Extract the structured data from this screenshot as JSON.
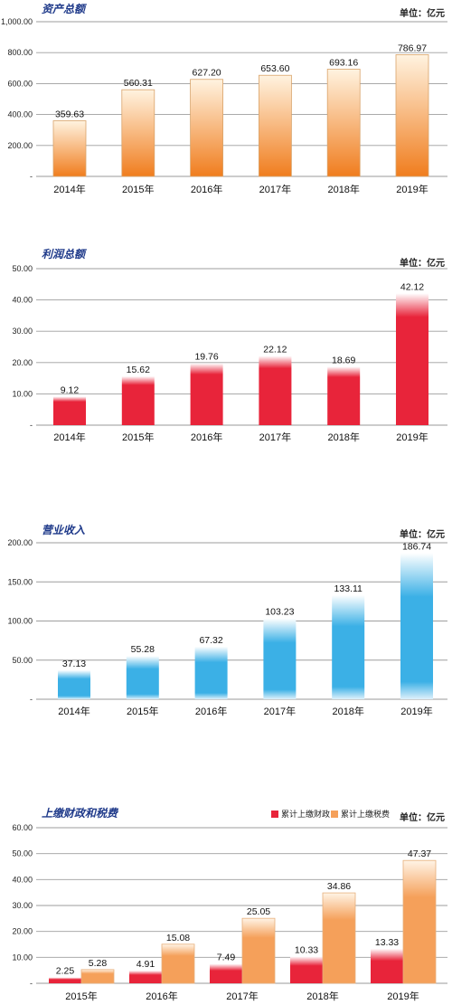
{
  "chart_data": [
    {
      "type": "bar",
      "title": "资产总额",
      "unit": "单位：亿元",
      "categories": [
        "2014年",
        "2015年",
        "2016年",
        "2017年",
        "2018年",
        "2019年"
      ],
      "values": [
        359.63,
        560.31,
        627.2,
        653.6,
        693.16,
        786.97
      ],
      "labels": [
        "359.63",
        "560.31",
        "627.20",
        "653.60",
        "693.16",
        "786.97"
      ],
      "ylim": [
        0,
        1000
      ],
      "yticks": [
        "-",
        "200.00",
        "400.00",
        "600.00",
        "800.00",
        "1,000.00"
      ],
      "grid": true,
      "colors": {
        "top": "#fff3e0",
        "bottom": "#f07d1e",
        "edge": "#d9a46b"
      }
    },
    {
      "type": "bar",
      "title": "利润总额",
      "unit": "单位：亿元",
      "categories": [
        "2014年",
        "2015年",
        "2016年",
        "2017年",
        "2018年",
        "2019年"
      ],
      "values": [
        9.12,
        15.62,
        19.76,
        22.12,
        18.69,
        42.12
      ],
      "labels": [
        "9.12",
        "15.62",
        "19.76",
        "22.12",
        "18.69",
        "42.12"
      ],
      "ylim": [
        0,
        50
      ],
      "yticks": [
        "-",
        "10.00",
        "20.00",
        "30.00",
        "40.00",
        "50.00"
      ],
      "grid": true,
      "colors": {
        "top": "#ffffff",
        "bottom": "#e8243a",
        "edge": "#e8243a"
      }
    },
    {
      "type": "bar",
      "title": "营业收入",
      "unit": "单位：亿元",
      "categories": [
        "2014年",
        "2015年",
        "2016年",
        "2017年",
        "2018年",
        "2019年"
      ],
      "values": [
        37.13,
        55.28,
        67.32,
        103.23,
        133.11,
        186.74
      ],
      "labels": [
        "37.13",
        "55.28",
        "67.32",
        "103.23",
        "133.11",
        "186.74"
      ],
      "ylim": [
        0,
        200
      ],
      "yticks": [
        "-",
        "50.00",
        "100.00",
        "150.00",
        "200.00"
      ],
      "grid": true,
      "colors": {
        "top": "#ffffff",
        "bottom": "#3bb0e6",
        "edge": "#3bb0e6"
      }
    },
    {
      "type": "bar",
      "title": "上缴财政和税费",
      "unit": "单位：亿元",
      "legend_position": "top-right",
      "categories": [
        "2015年",
        "2016年",
        "2017年",
        "2018年",
        "2019年"
      ],
      "series": [
        {
          "name": "累计上缴财政",
          "values": [
            2.25,
            4.91,
            7.49,
            10.33,
            13.33
          ],
          "labels": [
            "2.25",
            "4.91",
            "7.49",
            "10.33",
            "13.33"
          ],
          "color": "#e8243a"
        },
        {
          "name": "累计上缴税费",
          "values": [
            5.28,
            15.08,
            25.05,
            34.86,
            47.37
          ],
          "labels": [
            "5.28",
            "15.08",
            "25.05",
            "34.86",
            "47.37"
          ],
          "color": "#f5a05a"
        }
      ],
      "ylim": [
        0,
        60
      ],
      "yticks": [
        "-",
        "10.00",
        "20.00",
        "30.00",
        "40.00",
        "50.00",
        "60.00"
      ],
      "grid": true
    }
  ]
}
